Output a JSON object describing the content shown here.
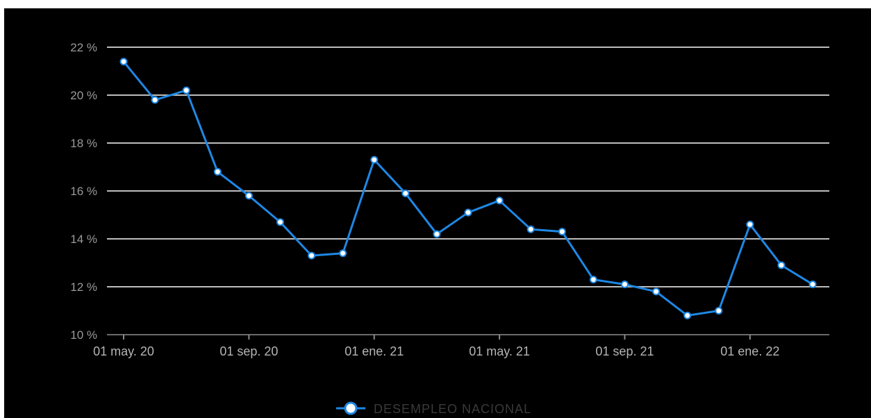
{
  "chart_data": {
    "type": "line",
    "x": [
      "01 may. 20",
      "01 jun. 20",
      "01 jul. 20",
      "01 ago. 20",
      "01 sep. 20",
      "01 oct. 20",
      "01 nov. 20",
      "01 dic. 20",
      "01 ene. 21",
      "01 feb. 21",
      "01 mar. 21",
      "01 abr. 21",
      "01 may. 21",
      "01 jun. 21",
      "01 jul. 21",
      "01 ago. 21",
      "01 sep. 21",
      "01 oct. 21",
      "01 nov. 21",
      "01 dic. 21",
      "01 ene. 22",
      "01 feb. 22",
      "01 mar. 22"
    ],
    "x_tick_labels": [
      "01 may. 20",
      "01 sep. 20",
      "01 ene. 21",
      "01 may. 21",
      "01 sep. 21",
      "01 ene. 22"
    ],
    "series": [
      {
        "name": "DESEMPLEO NACIONAL",
        "color": "#1e88e5",
        "values": [
          21.4,
          19.8,
          20.2,
          16.8,
          15.8,
          14.7,
          13.3,
          13.4,
          17.3,
          15.9,
          14.2,
          15.1,
          15.6,
          14.4,
          14.3,
          12.3,
          12.1,
          11.8,
          10.8,
          11.0,
          14.6,
          12.9,
          12.1
        ]
      }
    ],
    "y_ticks": [
      "10 %",
      "12 %",
      "14 %",
      "16 %",
      "18 %",
      "20 %",
      "22 %"
    ],
    "ylim": [
      10,
      22
    ],
    "grid": true,
    "legend_position": "bottom-center",
    "title": "",
    "xlabel": "",
    "ylabel": ""
  },
  "colors": {
    "background": "#000000",
    "grid": "#bdbdbd",
    "line": "#1e88e5"
  }
}
